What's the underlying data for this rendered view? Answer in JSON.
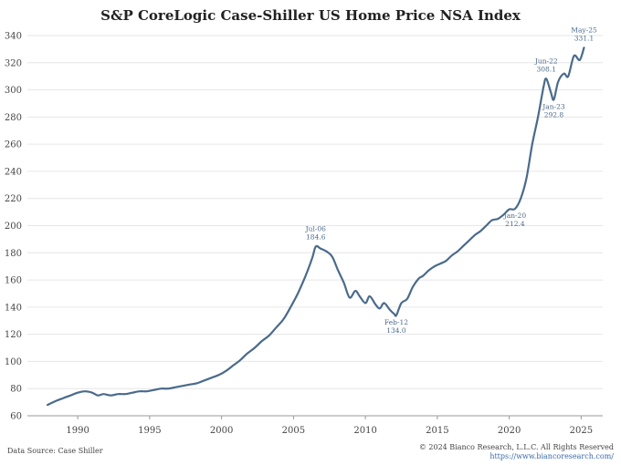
{
  "chart_data": {
    "type": "line",
    "title": "S&P CoreLogic Case-Shiller US Home Price NSA Index",
    "xlabel": "",
    "ylabel": "",
    "xlim": [
      1986.5,
      2026.5
    ],
    "ylim": [
      60,
      340
    ],
    "yticks": [
      60,
      80,
      100,
      120,
      140,
      160,
      180,
      200,
      220,
      240,
      260,
      280,
      300,
      320,
      340
    ],
    "xticks": [
      1990,
      1995,
      2000,
      2005,
      2010,
      2015,
      2020,
      2025
    ],
    "grid": "horizontal",
    "series_color": "#4a6a8c",
    "series": [
      {
        "x": [
          1987.9,
          1988.5,
          1989.0,
          1989.5,
          1990.0,
          1990.5,
          1991.0,
          1991.4,
          1991.8,
          1992.3,
          1992.8,
          1993.3,
          1993.8,
          1994.3,
          1994.8,
          1995.3,
          1995.8,
          1996.3,
          1996.8,
          1997.3,
          1997.8,
          1998.3,
          1998.8,
          1999.3,
          1999.8,
          2000.3,
          2000.8,
          2001.3,
          2001.8,
          2002.3,
          2002.8,
          2003.3,
          2003.8,
          2004.3,
          2004.8,
          2005.3,
          2005.8,
          2006.3,
          2006.55,
          2006.9,
          2007.3,
          2007.7,
          2008.1,
          2008.5,
          2008.9,
          2009.3,
          2009.6,
          2010.0,
          2010.3,
          2010.7,
          2011.0,
          2011.3,
          2011.7,
          2012.0,
          2012.15,
          2012.5,
          2012.9,
          2013.3,
          2013.7,
          2014.0,
          2014.4,
          2014.8,
          2015.2,
          2015.6,
          2016.0,
          2016.4,
          2016.8,
          2017.2,
          2017.6,
          2018.0,
          2018.4,
          2018.8,
          2019.2,
          2019.6,
          2020.0,
          2020.4,
          2020.8,
          2021.2,
          2021.6,
          2022.0,
          2022.4,
          2022.58,
          2022.9,
          2023.1,
          2023.4,
          2023.8,
          2024.1,
          2024.5,
          2024.9,
          2025.2
        ],
        "y": [
          68,
          71,
          73,
          75,
          77,
          78,
          77,
          75,
          76,
          75,
          76,
          76,
          77,
          78,
          78,
          79,
          80,
          80,
          81,
          82,
          83,
          84,
          86,
          88,
          90,
          93,
          97,
          101,
          106,
          110,
          115,
          119,
          125,
          131,
          140,
          150,
          162,
          176,
          184.6,
          183,
          181,
          177,
          167,
          158,
          147,
          152,
          148,
          143,
          148,
          142,
          139,
          143,
          138,
          135,
          134.0,
          143,
          146,
          155,
          161,
          163,
          167,
          170,
          172,
          174,
          178,
          181,
          185,
          189,
          193,
          196,
          200,
          204,
          205,
          208,
          212,
          212.4,
          220,
          235,
          260,
          280,
          303,
          308.1,
          298,
          292.8,
          306,
          312,
          310,
          325,
          322,
          331.1
        ]
      }
    ],
    "annotations": [
      {
        "x": 2006.55,
        "y": 184.6,
        "label": "Jul-06",
        "value": "184.6",
        "pos": "above"
      },
      {
        "x": 2012.15,
        "y": 134.0,
        "label": "Feb-12",
        "value": "134.0",
        "pos": "below"
      },
      {
        "x": 2020.4,
        "y": 212.4,
        "label": "Jan-20",
        "value": "212.4",
        "pos": "below"
      },
      {
        "x": 2022.58,
        "y": 308.1,
        "label": "Jun-22",
        "value": "308.1",
        "pos": "above"
      },
      {
        "x": 2023.1,
        "y": 292.8,
        "label": "Jan-23",
        "value": "292.8",
        "pos": "below"
      },
      {
        "x": 2025.2,
        "y": 331.1,
        "label": "May-25",
        "value": "331.1",
        "pos": "above"
      }
    ]
  },
  "footer": {
    "source": "Data Source: Case Shiller",
    "copyright": "© 2024 Bianco Research, L.L.C. All Rights Reserved",
    "url": "https://www.biancoresearch.com/"
  }
}
